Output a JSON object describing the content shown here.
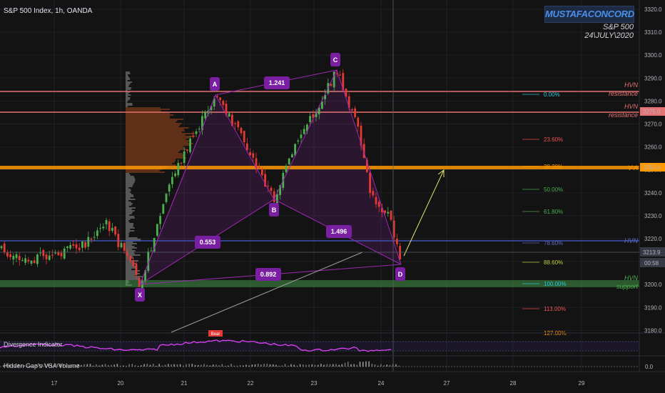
{
  "header": {
    "symbol": "S&P 500 Index, 1h, OANDA",
    "author": "MUSTAFACONCORD",
    "subtitle_1": "S&P 500",
    "subtitle_2": "24\\JULY\\2020"
  },
  "colors": {
    "background": "#131313",
    "up_candle": "#4caf50",
    "down_candle": "#e53935",
    "pattern_line": "#9c27b0",
    "label_bg": "#7b1fa2",
    "hvn_resistance": "#e57373",
    "value_area": "#ff9800",
    "hvn_blue": "#3f51b5",
    "support": "#4caf50"
  },
  "price_axis": {
    "ticks": [
      "3320.0",
      "3310.0",
      "3300.0",
      "3290.0",
      "3280.0",
      "3270.0",
      "3260.0",
      "3250.0",
      "3240.0",
      "3230.0",
      "3220.0",
      "3210.0",
      "3200.0",
      "3190.0",
      "3180.0"
    ],
    "price_tags": [
      {
        "text": "3275.0",
        "color": "#e57373"
      },
      {
        "text": "3250.4",
        "color": "#ff9800"
      },
      {
        "text": "3213.9",
        "color": "#363a45"
      },
      {
        "text": "00:58",
        "color": "#363a45"
      }
    ]
  },
  "time_axis": [
    "17",
    "20",
    "21",
    "22",
    "23",
    "24",
    "27",
    "28",
    "29"
  ],
  "pattern": {
    "points": [
      "X",
      "A",
      "B",
      "C",
      "D"
    ],
    "ratios": [
      "1.241",
      "0.553",
      "1.496",
      "0.892"
    ]
  },
  "fib_levels": [
    {
      "label": "0.00%",
      "color": "#26c6da"
    },
    {
      "label": "23.60%",
      "color": "#ef5350"
    },
    {
      "label": "38.20%",
      "color": "#ff9800"
    },
    {
      "label": "50.00%",
      "color": "#4caf50"
    },
    {
      "label": "61.80%",
      "color": "#4caf50"
    },
    {
      "label": "78.60%",
      "color": "#5c6bc0"
    },
    {
      "label": "88.60%",
      "color": "#c0ca33"
    },
    {
      "label": "100.00%",
      "color": "#26c6da"
    },
    {
      "label": "113.00%",
      "color": "#ef5350"
    },
    {
      "label": "127.00%",
      "color": "#ff9800"
    }
  ],
  "annotations": [
    {
      "text": "HVN",
      "color": "#e57373"
    },
    {
      "text": "resistance",
      "color": "#e57373"
    },
    {
      "text": "HVN",
      "color": "#e57373"
    },
    {
      "text": "resistance",
      "color": "#e57373"
    },
    {
      "text": "V A",
      "color": "#ff9800"
    },
    {
      "text": "HVN",
      "color": "#5c6bc0"
    },
    {
      "text": "HVN",
      "color": "#4caf50"
    },
    {
      "text": "support",
      "color": "#4caf50"
    }
  ],
  "panes": {
    "divergence_title": "Divergence Indicator",
    "divergence_badge": "Bear",
    "vsa_title": "Hidden Gap's VSA Volume",
    "vsa_value": "0.0"
  }
}
